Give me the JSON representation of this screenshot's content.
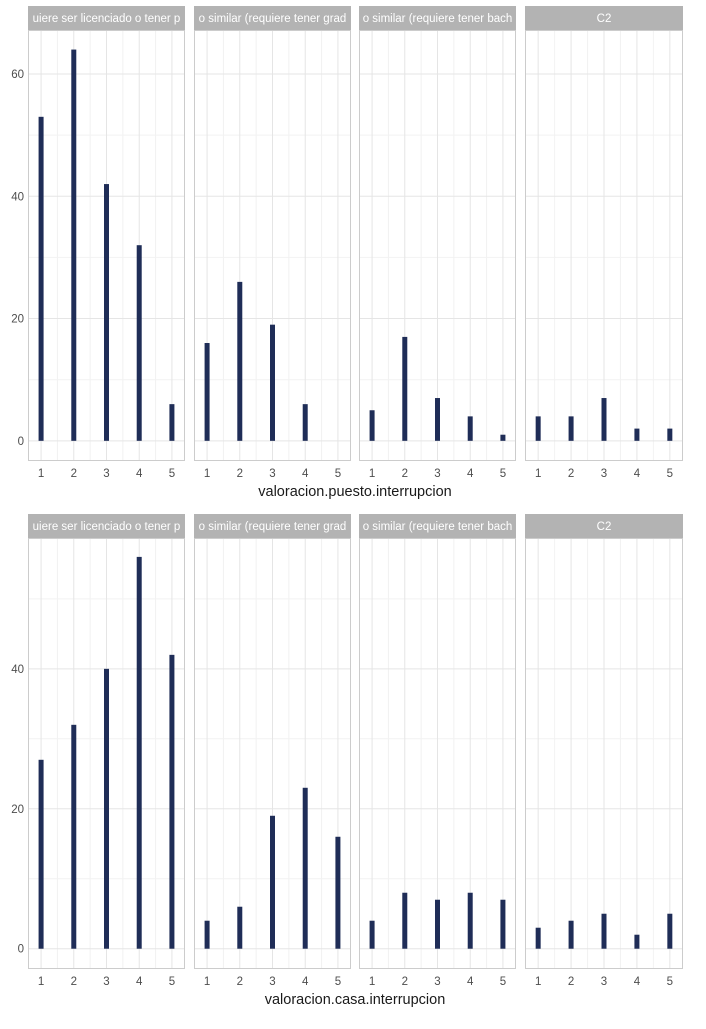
{
  "colors": {
    "bar": "#1f2d57",
    "strip_bg": "#b3b3b3",
    "strip_text": "#ffffff",
    "grid_major": "#e5e5e5",
    "grid_minor": "#f2f2f2",
    "panel_border": "#cccccc",
    "tick_text": "#4d4d4d",
    "axis_title": "#1a1a1a"
  },
  "chart_data": [
    {
      "type": "bar",
      "title": "",
      "xlabel": "valoracion.puesto.interrupcion",
      "ylabel": "",
      "categories": [
        "1",
        "2",
        "3",
        "4",
        "5"
      ],
      "yticks": [
        0,
        20,
        40,
        60
      ],
      "ylim": [
        -3.3,
        67.2
      ],
      "facets": [
        {
          "label": "uiere ser licenciado o tener p",
          "values": [
            53,
            64,
            42,
            32,
            6
          ]
        },
        {
          "label": "o similar (requiere tener grad",
          "values": [
            16,
            26,
            19,
            6,
            0
          ]
        },
        {
          "label": "o similar (requiere tener bach",
          "values": [
            5,
            17,
            7,
            4,
            1
          ]
        },
        {
          "label": "C2",
          "values": [
            4,
            4,
            7,
            2,
            2
          ]
        }
      ],
      "grid": true,
      "legend": "none"
    },
    {
      "type": "bar",
      "title": "",
      "xlabel": "valoracion.casa.interrupcion",
      "ylabel": "",
      "categories": [
        "1",
        "2",
        "3",
        "4",
        "5"
      ],
      "yticks": [
        0,
        20,
        40
      ],
      "ylim": [
        -2.9,
        58.7
      ],
      "facets": [
        {
          "label": "uiere ser licenciado o tener p",
          "values": [
            27,
            32,
            40,
            56,
            42
          ]
        },
        {
          "label": "o similar (requiere tener grad",
          "values": [
            4,
            6,
            19,
            23,
            16
          ]
        },
        {
          "label": "o similar (requiere tener bach",
          "values": [
            4,
            8,
            7,
            8,
            7
          ]
        },
        {
          "label": "C2",
          "values": [
            3,
            4,
            5,
            2,
            5
          ]
        }
      ],
      "grid": true,
      "legend": "none"
    }
  ]
}
